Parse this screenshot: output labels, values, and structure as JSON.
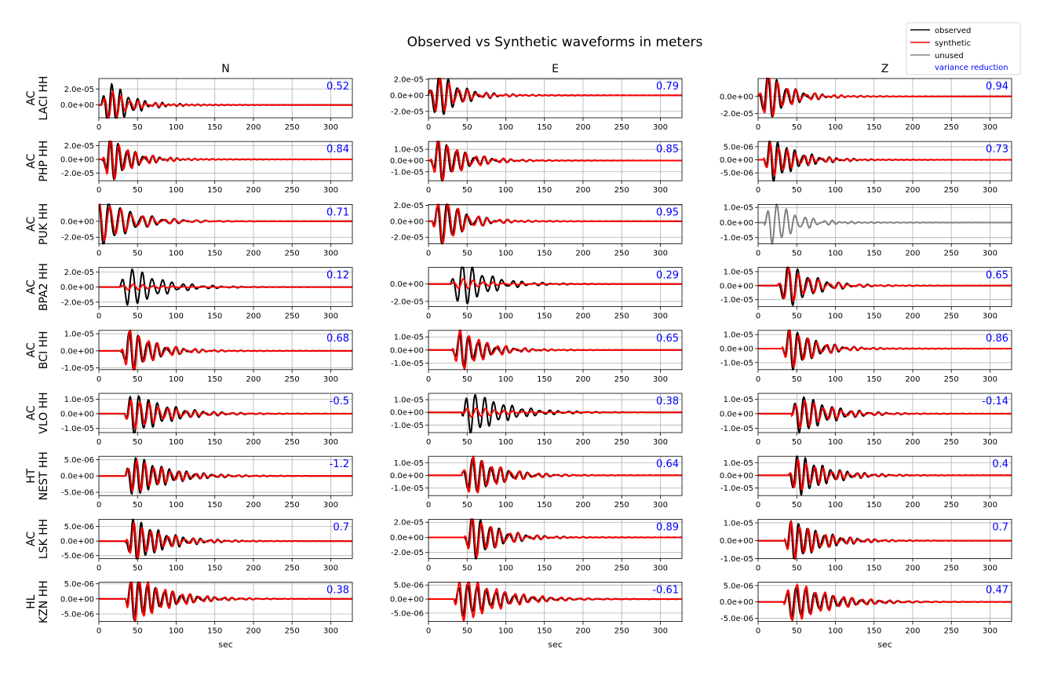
{
  "title": "Observed vs Synthetic waveforms in meters",
  "columns": [
    "N",
    "E",
    "Z"
  ],
  "xlabel": "sec",
  "xticks": [
    0,
    50,
    100,
    150,
    200,
    250,
    300
  ],
  "xlim": [
    0,
    328
  ],
  "legend": {
    "position": "top-right",
    "items": [
      {
        "label": "observed",
        "color": "#000000"
      },
      {
        "label": "synthetic",
        "color": "#ff0000"
      },
      {
        "label": "unused",
        "color": "#808080"
      }
    ],
    "vr_label": "variance reduction",
    "vr_color": "#0000ff"
  },
  "chart_data": {
    "type": "line",
    "title": "Observed vs Synthetic waveforms in meters",
    "xlabel": "sec",
    "series_names": [
      "observed",
      "synthetic",
      "unused"
    ],
    "stations": [
      {
        "net": "AC",
        "sta": "LACI HH",
        "panels": [
          {
            "comp": "N",
            "vr": "0.52",
            "ylim": [
              -1.6e-05,
              3.3e-05
            ],
            "yticks": [
              "2.0e-05",
              "0.0e+00"
            ],
            "ytick_values": [
              2e-05,
              0
            ],
            "onset": 14,
            "period": 11,
            "amp_obs": 2.9e-05,
            "amp_syn": 1.8e-05,
            "decay": 22,
            "used": true
          },
          {
            "comp": "E",
            "vr": "0.79",
            "ylim": [
              -2.8e-05,
              2.1e-05
            ],
            "yticks": [
              "2.0e-05",
              "0.0e+00",
              "-2.0e-05"
            ],
            "ytick_values": [
              2e-05,
              0,
              -2e-05
            ],
            "onset": 12,
            "period": 12,
            "amp_obs": 2.8e-05,
            "amp_syn": 2.2e-05,
            "decay": 25,
            "used": true
          },
          {
            "comp": "Z",
            "vr": "0.94",
            "ylim": [
              -2.5e-05,
              2.1e-05
            ],
            "yticks": [
              "0.0e+00",
              "-2.0e-05"
            ],
            "ytick_values": [
              0,
              -2e-05
            ],
            "onset": 12,
            "period": 12,
            "amp_obs": 2.6e-05,
            "amp_syn": 2.5e-05,
            "decay": 25,
            "used": true
          }
        ]
      },
      {
        "net": "AC",
        "sta": "PHP HH",
        "panels": [
          {
            "comp": "N",
            "vr": "0.84",
            "ylim": [
              -3.1e-05,
              2.6e-05
            ],
            "yticks": [
              "2.0e-05",
              "0.0e+00",
              "-2.0e-05"
            ],
            "ytick_values": [
              2e-05,
              0,
              -2e-05
            ],
            "onset": 15,
            "period": 11,
            "amp_obs": 2.9e-05,
            "amp_syn": 3e-05,
            "decay": 25,
            "used": true
          },
          {
            "comp": "E",
            "vr": "0.85",
            "ylim": [
              -1.8e-05,
              1.7e-05
            ],
            "yticks": [
              "1.0e-05",
              "0.0e+00",
              "-1.0e-05"
            ],
            "ytick_values": [
              1e-05,
              0,
              -1e-05
            ],
            "onset": 14,
            "period": 12,
            "amp_obs": 1.7e-05,
            "amp_syn": 1.8e-05,
            "decay": 30,
            "used": true
          },
          {
            "comp": "Z",
            "vr": "0.73",
            "ylim": [
              -8e-06,
              7e-06
            ],
            "yticks": [
              "5.0e-06",
              "0.0e+00",
              "-5.0e-06"
            ],
            "ytick_values": [
              5e-06,
              0,
              -5e-06
            ],
            "onset": 18,
            "period": 11,
            "amp_obs": 8e-06,
            "amp_syn": 6e-06,
            "decay": 30,
            "used": true
          }
        ]
      },
      {
        "net": "AC",
        "sta": "PUK HH",
        "panels": [
          {
            "comp": "N",
            "vr": "0.71",
            "ylim": [
              -2.8e-05,
              2.1e-05
            ],
            "yticks": [
              "0.0e+00",
              "-2.0e-05"
            ],
            "ytick_values": [
              0,
              -2e-05
            ],
            "onset": 5,
            "period": 14,
            "amp_obs": 2.8e-05,
            "amp_syn": 2.4e-05,
            "decay": 35,
            "used": true
          },
          {
            "comp": "E",
            "vr": "0.95",
            "ylim": [
              -2.8e-05,
              2.1e-05
            ],
            "yticks": [
              "2.0e-05",
              "0.0e+00",
              "-2.0e-05"
            ],
            "ytick_values": [
              2e-05,
              0,
              -2e-05
            ],
            "onset": 18,
            "period": 13,
            "amp_obs": 2.7e-05,
            "amp_syn": 2.8e-05,
            "decay": 25,
            "used": true
          },
          {
            "comp": "Z",
            "vr": "",
            "ylim": [
              -1.4e-05,
              1.2e-05
            ],
            "yticks": [
              "1.0e-05",
              "0.0e+00",
              "-1.0e-05"
            ],
            "ytick_values": [
              1e-05,
              0,
              -1e-05
            ],
            "onset": 20,
            "period": 12,
            "amp_obs": 1.4e-05,
            "amp_syn": 0,
            "decay": 25,
            "used": false
          }
        ]
      },
      {
        "net": "AC",
        "sta": "BPA2 HH",
        "panels": [
          {
            "comp": "N",
            "vr": "0.12",
            "ylim": [
              -2.6e-05,
              2.6e-05
            ],
            "yticks": [
              "2.0e-05",
              "0.0e+00",
              "-2.0e-05"
            ],
            "ytick_values": [
              2e-05,
              0,
              -2e-05
            ],
            "onset": 40,
            "period": 13,
            "amp_obs": 2.6e-05,
            "amp_syn": 4e-06,
            "decay": 35,
            "used": true
          },
          {
            "comp": "E",
            "vr": "0.29",
            "ylim": [
              -2.6e-05,
              1.9e-05
            ],
            "yticks": [
              "0.0e+00",
              "-2.0e-05"
            ],
            "ytick_values": [
              0,
              -2e-05
            ],
            "onset": 42,
            "period": 13,
            "amp_obs": 2.6e-05,
            "amp_syn": 6e-06,
            "decay": 30,
            "used": true
          },
          {
            "comp": "Z",
            "vr": "0.65",
            "ylim": [
              -1.5e-05,
              1.3e-05
            ],
            "yticks": [
              "1.0e-05",
              "0.0e+00",
              "-1.0e-05"
            ],
            "ytick_values": [
              1e-05,
              0,
              -1e-05
            ],
            "onset": 38,
            "period": 13,
            "amp_obs": 1.5e-05,
            "amp_syn": 1.2e-05,
            "decay": 30,
            "used": true
          }
        ]
      },
      {
        "net": "AC",
        "sta": "BCI HH",
        "panels": [
          {
            "comp": "N",
            "vr": "0.68",
            "ylim": [
              -1.1e-05,
              1.2e-05
            ],
            "yticks": [
              "1.0e-05",
              "0.0e+00",
              "-1.0e-05"
            ],
            "ytick_values": [
              1e-05,
              0,
              -1e-05
            ],
            "onset": 40,
            "period": 12,
            "amp_obs": 1.1e-05,
            "amp_syn": 1.2e-05,
            "decay": 30,
            "used": true
          },
          {
            "comp": "E",
            "vr": "0.65",
            "ylim": [
              -1.5e-05,
              1.5e-05
            ],
            "yticks": [
              "1.0e-05",
              "0.0e+00",
              "-1.0e-05"
            ],
            "ytick_values": [
              1e-05,
              0,
              -1e-05
            ],
            "onset": 42,
            "period": 12,
            "amp_obs": 1.2e-05,
            "amp_syn": 1.5e-05,
            "decay": 30,
            "used": true
          },
          {
            "comp": "Z",
            "vr": "0.86",
            "ylim": [
              -1.5e-05,
              1.3e-05
            ],
            "yticks": [
              "1.0e-05",
              "0.0e+00",
              "-1.0e-05"
            ],
            "ytick_values": [
              1e-05,
              0,
              -1e-05
            ],
            "onset": 43,
            "period": 12,
            "amp_obs": 1.4e-05,
            "amp_syn": 1.3e-05,
            "decay": 28,
            "used": true
          }
        ]
      },
      {
        "net": "AC",
        "sta": "VLO HH",
        "panels": [
          {
            "comp": "N",
            "vr": "-0.5",
            "ylim": [
              -1.3e-05,
              1.4e-05
            ],
            "yticks": [
              "1.0e-05",
              "0.0e+00",
              "-1.0e-05"
            ],
            "ytick_values": [
              1e-05,
              0,
              -1e-05
            ],
            "onset": 45,
            "period": 12,
            "amp_obs": 1.4e-05,
            "amp_syn": 1e-05,
            "decay": 40,
            "used": true
          },
          {
            "comp": "E",
            "vr": "0.38",
            "ylim": [
              -1.6e-05,
              1.5e-05
            ],
            "yticks": [
              "1.0e-05",
              "0.0e+00",
              "-1.0e-05"
            ],
            "ytick_values": [
              1e-05,
              0,
              -1e-05
            ],
            "onset": 55,
            "period": 12,
            "amp_obs": 1.6e-05,
            "amp_syn": 4e-06,
            "decay": 40,
            "used": true
          },
          {
            "comp": "Z",
            "vr": "-0.14",
            "ylim": [
              -1.3e-05,
              1.4e-05
            ],
            "yticks": [
              "1.0e-05",
              "0.0e+00",
              "-1.0e-05"
            ],
            "ytick_values": [
              1e-05,
              0,
              -1e-05
            ],
            "onset": 55,
            "period": 12,
            "amp_obs": 1.3e-05,
            "amp_syn": 1e-05,
            "decay": 35,
            "used": true
          }
        ]
      },
      {
        "net": "HT",
        "sta": "NEST HH",
        "panels": [
          {
            "comp": "N",
            "vr": "-1.2",
            "ylim": [
              -6e-06,
              6e-06
            ],
            "yticks": [
              "5.0e-06",
              "0.0e+00",
              "-5.0e-06"
            ],
            "ytick_values": [
              5e-06,
              0,
              -5e-06
            ],
            "onset": 45,
            "period": 11,
            "amp_obs": 6e-06,
            "amp_syn": 5e-06,
            "decay": 40,
            "used": true
          },
          {
            "comp": "E",
            "vr": "0.64",
            "ylim": [
              -1.6e-05,
              1.5e-05
            ],
            "yticks": [
              "1.0e-05",
              "0.0e+00",
              "-1.0e-05"
            ],
            "ytick_values": [
              1e-05,
              0,
              -1e-05
            ],
            "onset": 55,
            "period": 12,
            "amp_obs": 1.4e-05,
            "amp_syn": 1.5e-05,
            "decay": 35,
            "used": true
          },
          {
            "comp": "Z",
            "vr": "0.4",
            "ylim": [
              -1.6e-05,
              1.5e-05
            ],
            "yticks": [
              "1.0e-05",
              "0.0e+00",
              "-1.0e-05"
            ],
            "ytick_values": [
              1e-05,
              0,
              -1e-05
            ],
            "onset": 50,
            "period": 11,
            "amp_obs": 1.6e-05,
            "amp_syn": 1.2e-05,
            "decay": 35,
            "used": true
          }
        ]
      },
      {
        "net": "AC",
        "sta": "LSK HH",
        "panels": [
          {
            "comp": "N",
            "vr": "0.7",
            "ylim": [
              -6e-06,
              7.5e-06
            ],
            "yticks": [
              "5.0e-06",
              "0.0e+00",
              "-5.0e-06"
            ],
            "ytick_values": [
              5e-06,
              0,
              -5e-06
            ],
            "onset": 45,
            "period": 11,
            "amp_obs": 7.5e-06,
            "amp_syn": 6e-06,
            "decay": 35,
            "used": true
          },
          {
            "comp": "E",
            "vr": "0.89",
            "ylim": [
              -2.8e-05,
              2.4e-05
            ],
            "yticks": [
              "2.0e-05",
              "0.0e+00",
              "-2.0e-05"
            ],
            "ytick_values": [
              2e-05,
              0,
              -2e-05
            ],
            "onset": 58,
            "period": 12,
            "amp_obs": 2.8e-05,
            "amp_syn": 2.6e-05,
            "decay": 30,
            "used": true
          },
          {
            "comp": "Z",
            "vr": "0.7",
            "ylim": [
              -1e-05,
              1.2e-05
            ],
            "yticks": [
              "1.0e-05",
              "0.0e+00",
              "-1.0e-05"
            ],
            "ytick_values": [
              1e-05,
              0,
              -1e-05
            ],
            "onset": 45,
            "period": 11,
            "amp_obs": 1.1e-05,
            "amp_syn": 1e-05,
            "decay": 35,
            "used": true
          }
        ]
      },
      {
        "net": "HL",
        "sta": "KZN HH",
        "panels": [
          {
            "comp": "N",
            "vr": "0.38",
            "ylim": [
              -7.5e-06,
              5.5e-06
            ],
            "yticks": [
              "5.0e-06",
              "0.0e+00",
              "-5.0e-06"
            ],
            "ytick_values": [
              5e-06,
              0,
              -5e-06
            ],
            "onset": 45,
            "period": 11,
            "amp_obs": 6.5e-06,
            "amp_syn": 7.5e-06,
            "decay": 40,
            "used": true
          },
          {
            "comp": "E",
            "vr": "-0.61",
            "ylim": [
              -8e-06,
              6e-06
            ],
            "yticks": [
              "5.0e-06",
              "0.0e+00",
              "-5.0e-06"
            ],
            "ytick_values": [
              5e-06,
              0,
              -5e-06
            ],
            "onset": 45,
            "period": 12,
            "amp_obs": 6e-06,
            "amp_syn": 8e-06,
            "decay": 45,
            "used": true
          },
          {
            "comp": "Z",
            "vr": "0.47",
            "ylim": [
              -6e-06,
              6e-06
            ],
            "yticks": [
              "5.0e-06",
              "0.0e+00",
              "-5.0e-06"
            ],
            "ytick_values": [
              5e-06,
              0,
              -5e-06
            ],
            "onset": 45,
            "period": 12,
            "amp_obs": 5e-06,
            "amp_syn": 6e-06,
            "decay": 45,
            "used": true
          }
        ]
      }
    ]
  }
}
